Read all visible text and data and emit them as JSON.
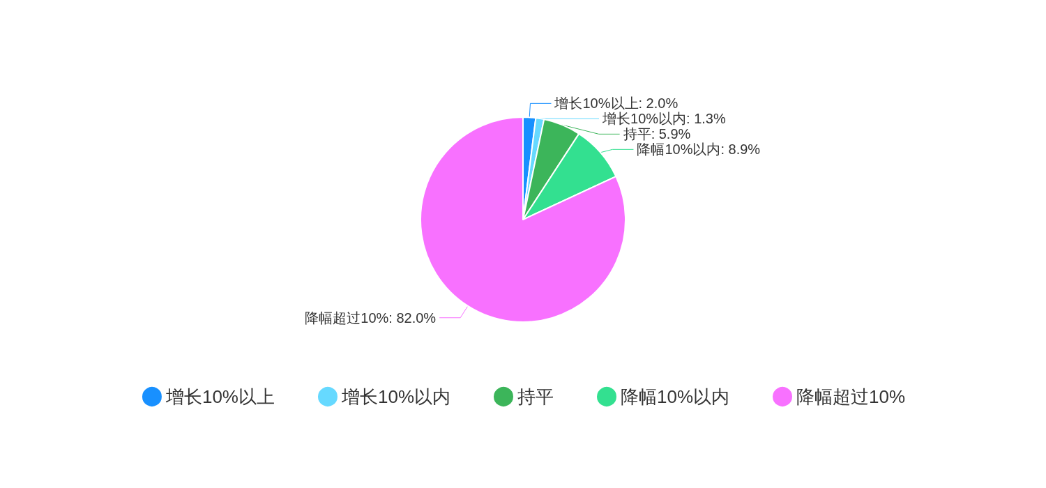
{
  "chart_data": {
    "type": "pie",
    "categories": [
      "增长10%以上",
      "增长10%以内",
      "持平",
      "降幅10%以内",
      "降幅超过10%"
    ],
    "values": [
      2.0,
      1.3,
      5.9,
      8.9,
      82.0
    ],
    "colors": [
      "#1890ff",
      "#66d9ff",
      "#3cb55a",
      "#33e090",
      "#f871ff"
    ],
    "value_labels": [
      "增长10%以上: 2.0%",
      "增长10%以内: 1.3%",
      "持平: 5.9%",
      "降幅10%以内: 8.9%",
      "降幅超过10%: 82.0%"
    ],
    "legend": "bottom"
  }
}
